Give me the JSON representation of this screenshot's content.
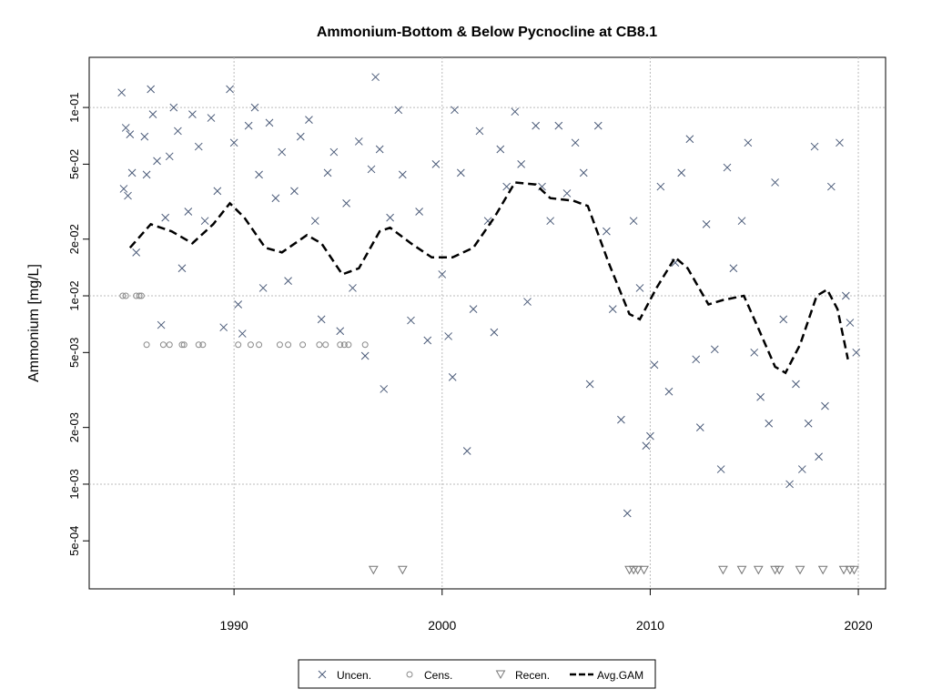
{
  "chart_data": {
    "type": "scatter",
    "title": "Ammonium-Bottom & Below Pycnocline at CB8.1",
    "y_label": "Ammonium [mg/L]",
    "ylog": true,
    "grid": true,
    "legend": "bottom",
    "xlim": [
      1983.04,
      2021.31
    ],
    "xticks": [
      1990,
      2000,
      2010,
      2020
    ],
    "ylim": [
      0.000278,
      0.1846
    ],
    "yticks": [
      {
        "value": 0.1,
        "label": "1e-01"
      },
      {
        "value": 0.05,
        "label": "5e-02"
      },
      {
        "value": 0.02,
        "label": "2e-02"
      },
      {
        "value": 0.01,
        "label": "1e-02"
      },
      {
        "value": 0.005,
        "label": "5e-03"
      },
      {
        "value": 0.002,
        "label": "2e-03"
      },
      {
        "value": 0.001,
        "label": "1e-03"
      },
      {
        "value": 0.0005,
        "label": "5e-04"
      }
    ],
    "series": [
      {
        "name": "Uncen.",
        "color": "#4a5a78",
        "marker": "x",
        "x": [
          1984.6,
          1984.7,
          1984.8,
          1984.9,
          1985.0,
          1985.1,
          1985.3,
          1985.7,
          1985.8,
          1986.0,
          1986.1,
          1986.3,
          1986.5,
          1986.7,
          1986.9,
          1987.1,
          1987.3,
          1987.5,
          1987.8,
          1988.0,
          1988.3,
          1988.6,
          1988.9,
          1989.2,
          1989.5,
          1989.8,
          1990.0,
          1990.2,
          1990.4,
          1990.7,
          1991.0,
          1991.2,
          1991.4,
          1991.7,
          1992.0,
          1992.3,
          1992.6,
          1992.9,
          1993.2,
          1993.6,
          1993.9,
          1994.2,
          1994.5,
          1994.8,
          1995.1,
          1995.4,
          1995.7,
          1996.0,
          1996.3,
          1996.6,
          1996.8,
          1997.0,
          1997.2,
          1997.5,
          1997.9,
          1998.1,
          1998.5,
          1998.9,
          1999.3,
          1999.7,
          2000.0,
          2000.3,
          2000.5,
          2000.6,
          2000.9,
          2001.2,
          2001.5,
          2001.8,
          2002.2,
          2002.5,
          2002.8,
          2003.1,
          2003.5,
          2003.8,
          2004.1,
          2004.5,
          2004.8,
          2005.2,
          2005.6,
          2006.0,
          2006.4,
          2006.8,
          2007.1,
          2007.5,
          2007.9,
          2008.2,
          2008.6,
          2008.9,
          2009.2,
          2009.5,
          2009.8,
          2010.0,
          2010.2,
          2010.5,
          2010.9,
          2011.2,
          2011.5,
          2011.9,
          2012.2,
          2012.4,
          2012.7,
          2013.1,
          2013.4,
          2013.7,
          2014.0,
          2014.4,
          2014.7,
          2015.0,
          2015.3,
          2015.7,
          2016.0,
          2016.4,
          2016.7,
          2017.0,
          2017.3,
          2017.6,
          2017.9,
          2018.1,
          2018.4,
          2018.7,
          2019.1,
          2019.4,
          2019.6,
          2019.9
        ],
        "values": [
          0.12,
          0.037,
          0.078,
          0.034,
          0.072,
          0.045,
          0.017,
          0.07,
          0.044,
          0.125,
          0.092,
          0.052,
          0.007,
          0.026,
          0.055,
          0.1,
          0.075,
          0.014,
          0.028,
          0.092,
          0.062,
          0.025,
          0.088,
          0.036,
          0.0068,
          0.125,
          0.065,
          0.009,
          0.0063,
          0.08,
          0.1,
          0.044,
          0.011,
          0.083,
          0.033,
          0.058,
          0.012,
          0.036,
          0.07,
          0.086,
          0.025,
          0.0075,
          0.045,
          0.058,
          0.0065,
          0.031,
          0.011,
          0.066,
          0.0048,
          0.047,
          0.145,
          0.06,
          0.0032,
          0.026,
          0.097,
          0.044,
          0.0074,
          0.028,
          0.0058,
          0.05,
          0.013,
          0.0061,
          0.0037,
          0.097,
          0.045,
          0.0015,
          0.0085,
          0.075,
          0.025,
          0.0064,
          0.06,
          0.038,
          0.095,
          0.05,
          0.0093,
          0.08,
          0.038,
          0.025,
          0.08,
          0.035,
          0.065,
          0.045,
          0.0034,
          0.08,
          0.022,
          0.0085,
          0.0022,
          0.0007,
          0.025,
          0.011,
          0.0016,
          0.0018,
          0.0043,
          0.038,
          0.0031,
          0.015,
          0.045,
          0.068,
          0.0046,
          0.002,
          0.024,
          0.0052,
          0.0012,
          0.048,
          0.014,
          0.025,
          0.065,
          0.005,
          0.0029,
          0.0021,
          0.04,
          0.0075,
          0.001,
          0.0034,
          0.0012,
          0.0021,
          0.062,
          0.0014,
          0.0026,
          0.038,
          0.065,
          0.01,
          0.0072,
          0.005
        ]
      },
      {
        "name": "Cens.",
        "color": "#8a8a8a",
        "marker": "circle",
        "x": [
          1984.65,
          1984.8,
          1985.3,
          1985.45,
          1985.55,
          1985.8,
          1986.6,
          1986.9,
          1987.5,
          1987.6,
          1988.3,
          1988.5,
          1990.2,
          1990.8,
          1991.2,
          1992.2,
          1992.6,
          1993.3,
          1994.1,
          1994.4,
          1995.1,
          1995.3,
          1995.5,
          1996.3
        ],
        "values": [
          0.01,
          0.01,
          0.01,
          0.01,
          0.01,
          0.0055,
          0.0055,
          0.0055,
          0.0055,
          0.0055,
          0.0055,
          0.0055,
          0.0055,
          0.0055,
          0.0055,
          0.0055,
          0.0055,
          0.0055,
          0.0055,
          0.0055,
          0.0055,
          0.0055,
          0.0055,
          0.0055
        ]
      },
      {
        "name": "Recen.",
        "color": "#777777",
        "marker": "triangle",
        "x": [
          1996.7,
          1998.1,
          2009.0,
          2009.2,
          2009.4,
          2009.7,
          2013.5,
          2014.4,
          2015.2,
          2016.0,
          2016.2,
          2017.2,
          2018.3,
          2019.3,
          2019.6,
          2019.8
        ],
        "values": [
          0.00035,
          0.00035,
          0.00035,
          0.00035,
          0.00035,
          0.00035,
          0.00035,
          0.00035,
          0.00035,
          0.00035,
          0.00035,
          0.00035,
          0.00035,
          0.00035,
          0.00035,
          0.00035
        ]
      },
      {
        "name": "Avg.GAM",
        "color": "#000000",
        "marker": "dashed-line",
        "x": [
          1985,
          1986,
          1987,
          1988,
          1989,
          1989.8,
          1990.5,
          1991.5,
          1992.3,
          1993.5,
          1994.2,
          1995.2,
          1996,
          1997,
          1997.5,
          1998.5,
          1999.5,
          2000.5,
          2001.5,
          2002.5,
          2003.5,
          2004.5,
          2005.2,
          2006.3,
          2007,
          2008,
          2009,
          2009.5,
          2010.3,
          2011.2,
          2011.8,
          2012.8,
          2013.5,
          2014.5,
          2015.2,
          2016,
          2016.5,
          2017.2,
          2018,
          2018.5,
          2019,
          2019.5
        ],
        "values": [
          0.018,
          0.024,
          0.022,
          0.019,
          0.024,
          0.031,
          0.026,
          0.018,
          0.017,
          0.021,
          0.019,
          0.013,
          0.014,
          0.022,
          0.023,
          0.019,
          0.016,
          0.016,
          0.018,
          0.026,
          0.04,
          0.039,
          0.033,
          0.032,
          0.03,
          0.015,
          0.008,
          0.0075,
          0.011,
          0.016,
          0.014,
          0.009,
          0.0095,
          0.01,
          0.0067,
          0.0042,
          0.0039,
          0.0055,
          0.01,
          0.0108,
          0.0085,
          0.0046
        ]
      }
    ]
  }
}
